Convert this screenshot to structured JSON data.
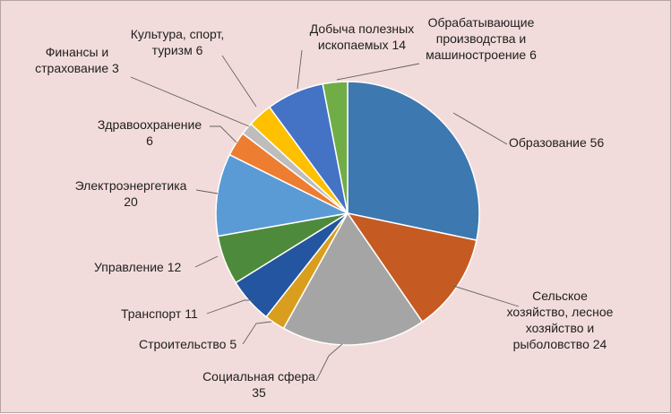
{
  "background": "#f2dcdb",
  "chart_data": {
    "type": "pie",
    "title": "",
    "start_angle_deg": 0,
    "direction": "clockwise",
    "legend": "none",
    "slices": [
      {
        "label": "Образование 56",
        "value": 56,
        "color": "#3d78b0"
      },
      {
        "label": "Сельское хозяйство, лесное хозяйство и рыболовство 24",
        "value": 24,
        "color": "#c55a22"
      },
      {
        "label": "Социальная сфера 35",
        "value": 35,
        "color": "#a5a5a5"
      },
      {
        "label": "Строительство 5",
        "value": 5,
        "color": "#d99e1e"
      },
      {
        "label": "Транспорт 11",
        "value": 11,
        "color": "#2355a0"
      },
      {
        "label": "Управление 12",
        "value": 12,
        "color": "#4e8a3b"
      },
      {
        "label": "Электроэнергетика 20",
        "value": 20,
        "color": "#5b9bd5"
      },
      {
        "label": "Здравоохранение 6",
        "value": 6,
        "color": "#ed7d31"
      },
      {
        "label": "Финансы и страхование 3",
        "value": 3,
        "color": "#bdbdbd"
      },
      {
        "label": "Культура, спорт, туризм 6",
        "value": 6,
        "color": "#ffc000"
      },
      {
        "label": "Добыча полезных ископаемых 14",
        "value": 14,
        "color": "#4472c4"
      },
      {
        "label": "Обрабатывающие производства и машиностроение 6",
        "value": 6,
        "color": "#70ad47"
      }
    ],
    "labels": [
      {
        "lines": [
          "Образование 56"
        ]
      },
      {
        "lines": [
          "Сельское",
          "хозяйство, лесное",
          "хозяйство и",
          "рыболовство  24"
        ]
      },
      {
        "lines": [
          "Социальная сфера",
          "35"
        ]
      },
      {
        "lines": [
          "Строительство 5"
        ]
      },
      {
        "lines": [
          "Транспорт 11"
        ]
      },
      {
        "lines": [
          "Управление  12"
        ]
      },
      {
        "lines": [
          "Электроэнергетика",
          "20"
        ]
      },
      {
        "lines": [
          "Здравоохранение",
          "6"
        ]
      },
      {
        "lines": [
          "Финансы и",
          "страхование  3"
        ]
      },
      {
        "lines": [
          "Культура, спорт,",
          "туризм 6"
        ]
      },
      {
        "lines": [
          "Добыча полезных",
          "ископаемых 14"
        ]
      },
      {
        "lines": [
          "Обрабатывающие",
          "производства и",
          "машиностроение 6"
        ]
      }
    ]
  }
}
